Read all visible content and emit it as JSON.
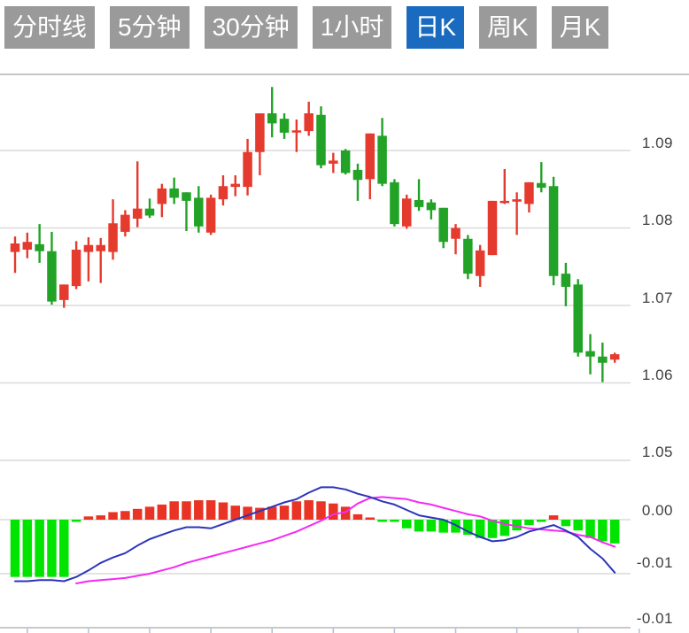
{
  "tabs": [
    {
      "label": "分时线",
      "selected": false
    },
    {
      "label": "5分钟",
      "selected": false
    },
    {
      "label": "30分钟",
      "selected": false
    },
    {
      "label": "1小时",
      "selected": false
    },
    {
      "label": "日K",
      "selected": true
    },
    {
      "label": "周K",
      "selected": false
    },
    {
      "label": "月K",
      "selected": false
    }
  ],
  "colors": {
    "tab_bg": "#9a9a9a",
    "tab_selected_bg": "#1a6bbf",
    "tab_text": "#ffffff",
    "candle_up": "#e53a2e",
    "candle_down": "#22a227",
    "hist_up": "#e93324",
    "hist_down": "#00e400",
    "dif_line": "#2c35bb",
    "dea_line": "#f42af4",
    "grid": "#dadada",
    "frame": "#c6c6c6",
    "tick": "#b0bdd0",
    "label_text": "#3f3f3f",
    "background": "#ffffff"
  },
  "axis": {
    "price_labels": [
      "1.09",
      "1.08",
      "1.07",
      "1.06",
      "1.05"
    ],
    "macd_labels": [
      "0.00",
      "-0.01",
      "-0.01"
    ]
  },
  "chart_data": {
    "type": "candlestick",
    "subchart": "macd-histogram",
    "price_gridlines": [
      1.09,
      1.08,
      1.07,
      1.06,
      1.05
    ],
    "macd_gridlines": [
      0.0,
      -0.005,
      -0.01
    ],
    "ylim_price": [
      1.05,
      1.1
    ],
    "ylim_macd": [
      -0.01,
      0.0005
    ],
    "candles": [
      [
        1.0769,
        1.0789,
        1.0742,
        1.078
      ],
      [
        1.0772,
        1.0794,
        1.0761,
        1.0782
      ],
      [
        1.0779,
        1.0805,
        1.0755,
        1.077
      ],
      [
        1.077,
        1.0795,
        1.0701,
        1.0705
      ],
      [
        1.0707,
        1.0727,
        1.0697,
        1.0727
      ],
      [
        1.0725,
        1.0783,
        1.0721,
        1.0772
      ],
      [
        1.0769,
        1.0788,
        1.0731,
        1.0778
      ],
      [
        1.077,
        1.0787,
        1.0729,
        1.0778
      ],
      [
        1.0769,
        1.0837,
        1.0759,
        1.0806
      ],
      [
        1.0795,
        1.0823,
        1.0789,
        1.0817
      ],
      [
        1.0812,
        1.0886,
        1.0801,
        1.0825
      ],
      [
        1.0825,
        1.0838,
        1.0813,
        1.0816
      ],
      [
        1.0831,
        1.0857,
        1.0814,
        1.0851
      ],
      [
        1.0851,
        1.0865,
        1.0831,
        1.0839
      ],
      [
        1.0846,
        1.0846,
        1.0796,
        1.0835
      ],
      [
        1.0839,
        1.0854,
        1.0794,
        1.0802
      ],
      [
        1.0794,
        1.0843,
        1.0791,
        1.0839
      ],
      [
        1.0837,
        1.0868,
        1.0829,
        1.0854
      ],
      [
        1.0853,
        1.0868,
        1.0841,
        1.0857
      ],
      [
        1.0853,
        1.0915,
        1.0842,
        1.0898
      ],
      [
        1.0898,
        1.0948,
        1.0868,
        1.0948
      ],
      [
        1.0948,
        1.0982,
        1.0917,
        1.0935
      ],
      [
        1.0941,
        1.0948,
        1.0915,
        1.0923
      ],
      [
        1.0924,
        1.094,
        1.0898,
        1.0926
      ],
      [
        1.0925,
        1.0963,
        1.0919,
        1.0948
      ],
      [
        1.0946,
        1.0957,
        1.0877,
        1.0881
      ],
      [
        1.0883,
        1.0897,
        1.0871,
        1.0887
      ],
      [
        1.09,
        1.0902,
        1.0869,
        1.0871
      ],
      [
        1.0875,
        1.0883,
        1.0835,
        1.0862
      ],
      [
        1.0863,
        1.0922,
        1.0837,
        1.0922
      ],
      [
        1.0919,
        1.0942,
        1.0854,
        1.0857
      ],
      [
        1.0859,
        1.0863,
        1.0802,
        1.0805
      ],
      [
        1.0802,
        1.0843,
        1.0799,
        1.0838
      ],
      [
        1.0836,
        1.0863,
        1.0822,
        1.0827
      ],
      [
        1.0833,
        1.0837,
        1.0811,
        1.0823
      ],
      [
        1.0826,
        1.0826,
        1.0774,
        1.0782
      ],
      [
        1.0786,
        1.0805,
        1.0766,
        1.08
      ],
      [
        1.0786,
        1.0791,
        1.0734,
        1.0741
      ],
      [
        1.0738,
        1.0778,
        1.0724,
        1.0771
      ],
      [
        1.0765,
        1.0835,
        1.0765,
        1.0835
      ],
      [
        1.0833,
        1.0876,
        1.0831,
        1.0835
      ],
      [
        1.0834,
        1.0846,
        1.0791,
        1.0837
      ],
      [
        1.0831,
        1.0859,
        1.082,
        1.0859
      ],
      [
        1.0858,
        1.0885,
        1.0846,
        1.0852
      ],
      [
        1.0854,
        1.0866,
        1.0726,
        1.0738
      ],
      [
        1.0741,
        1.0755,
        1.0699,
        1.0724
      ],
      [
        1.0727,
        1.0734,
        1.0634,
        1.0639
      ],
      [
        1.0641,
        1.0663,
        1.0611,
        1.0634
      ],
      [
        1.0634,
        1.0652,
        1.0601,
        1.0626
      ],
      [
        1.063,
        1.0639,
        1.0626,
        1.0637
      ]
    ],
    "macd": {
      "histogram": [
        -0.0053,
        -0.0053,
        -0.0053,
        -0.0053,
        -0.0053,
        -0.0002,
        0.0003,
        0.0004,
        0.0007,
        0.0008,
        0.001,
        0.0012,
        0.0014,
        0.0017,
        0.0017,
        0.0018,
        0.0018,
        0.0016,
        0.0013,
        0.0012,
        0.0011,
        0.0012,
        0.0013,
        0.0017,
        0.0018,
        0.0017,
        0.0015,
        0.0012,
        0.0005,
        0.0002,
        -0.0002,
        -0.0002,
        -0.0008,
        -0.0011,
        -0.0011,
        -0.0012,
        -0.0012,
        -0.0014,
        -0.0017,
        -0.0017,
        -0.0015,
        -0.001,
        -0.0005,
        -0.0002,
        0.0004,
        -0.0006,
        -0.001,
        -0.0017,
        -0.002,
        -0.0022
      ],
      "dif": [
        -0.0057,
        -0.0057,
        -0.0056,
        -0.0056,
        -0.0057,
        -0.0053,
        -0.0047,
        -0.004,
        -0.0035,
        -0.0031,
        -0.0024,
        -0.0018,
        -0.0014,
        -0.001,
        -0.0007,
        -0.0007,
        -0.0008,
        -0.0004,
        0.0,
        0.0004,
        0.0008,
        0.0012,
        0.0016,
        0.0019,
        0.0025,
        0.003,
        0.003,
        0.0028,
        0.0024,
        0.0021,
        0.0017,
        0.0014,
        0.0009,
        0.0004,
        0.0002,
        0.0,
        -0.0005,
        -0.0011,
        -0.0016,
        -0.002,
        -0.0019,
        -0.0016,
        -0.0011,
        -0.0008,
        -0.0005,
        -0.001,
        -0.0016,
        -0.0027,
        -0.0036,
        -0.0049
      ],
      "dea": [
        null,
        null,
        null,
        null,
        null,
        -0.0059,
        -0.0057,
        -0.0056,
        -0.0055,
        -0.0054,
        -0.0052,
        -0.005,
        -0.0047,
        -0.0044,
        -0.004,
        -0.0037,
        -0.0034,
        -0.0031,
        -0.0028,
        -0.0025,
        -0.0022,
        -0.0019,
        -0.0015,
        -0.0011,
        -0.0006,
        -0.0001,
        0.0005,
        0.0007,
        0.0015,
        0.002,
        0.0021,
        0.002,
        0.0019,
        0.0016,
        0.0014,
        0.0011,
        0.0008,
        0.0005,
        0.0003,
        -0.0001,
        -0.0004,
        -0.0006,
        -0.0008,
        -0.0009,
        -0.001,
        -0.0011,
        -0.0014,
        -0.0016,
        -0.0021,
        -0.0025
      ]
    },
    "x_tick_indices": [
      1,
      6,
      11,
      16,
      21,
      26,
      31,
      36,
      41,
      46,
      51
    ]
  }
}
